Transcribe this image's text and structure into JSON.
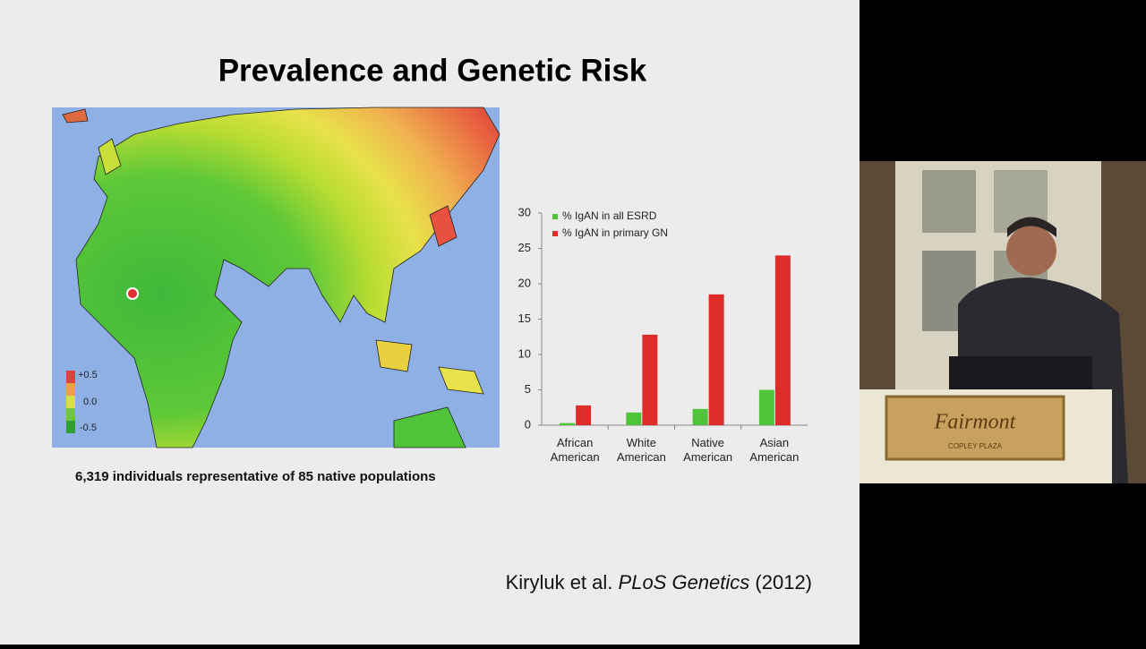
{
  "slide": {
    "title": "Prevalence and Genetic Risk",
    "caption": "6,319 individuals representative of 85 native populations",
    "citation": {
      "authors": "Kiryluk et al.",
      "journal": "PLoS Genetics",
      "year": "(2012)"
    }
  },
  "map": {
    "legend": [
      "+0.5",
      "0.0",
      "-0.5"
    ]
  },
  "video": {
    "sign": {
      "name": "Fairmont",
      "place": "COPLEY PLAZA"
    }
  },
  "chart_data": {
    "type": "bar",
    "categories": [
      "African American",
      "White American",
      "Native American",
      "Asian American"
    ],
    "series": [
      {
        "name": "% IgAN in all ESRD",
        "color": "#4fc33a",
        "values": [
          0.3,
          1.8,
          2.3,
          5
        ]
      },
      {
        "name": "% IgAN in primary GN",
        "color": "#e02b2b",
        "values": [
          2.8,
          12.8,
          18.5,
          24
        ]
      }
    ],
    "ylim": [
      0,
      30
    ],
    "yticks": [
      0,
      5,
      10,
      15,
      20,
      25,
      30
    ],
    "grid": false,
    "legend": "top-left"
  }
}
